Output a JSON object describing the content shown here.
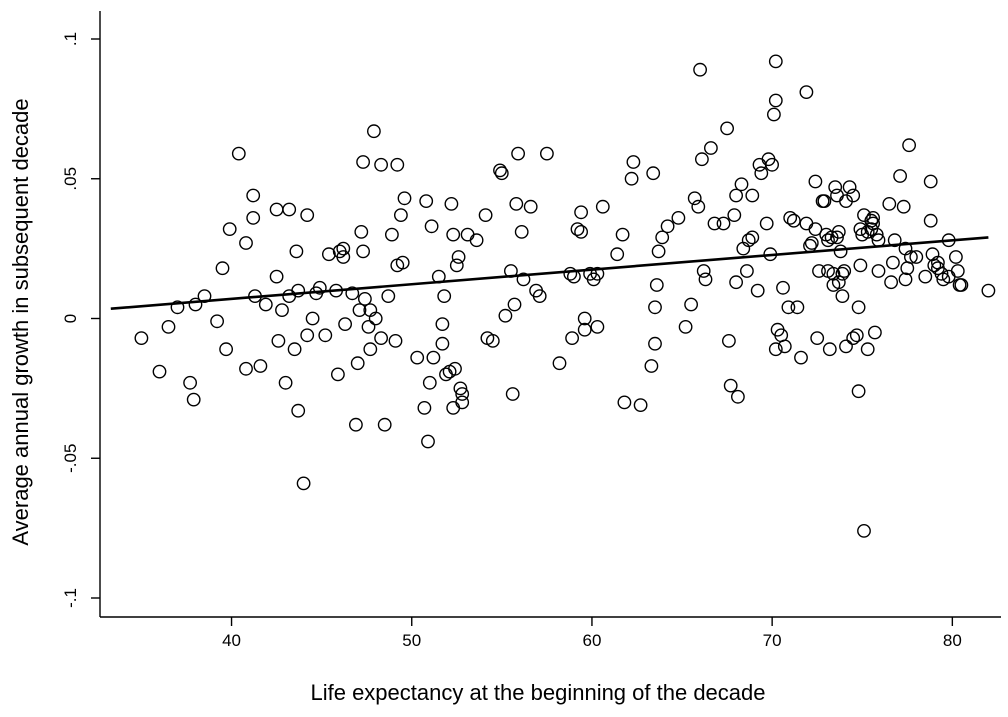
{
  "chart_data": {
    "type": "scatter",
    "xlabel": "Life expectancy at the beginning of the decade",
    "ylabel": "Average annual growth in subsequent decade",
    "xlim": [
      32.7,
      82.7
    ],
    "ylim": [
      -0.1,
      0.1
    ],
    "x_ticks": [
      40,
      50,
      60,
      70,
      80
    ],
    "x_tick_labels": [
      "40",
      "50",
      "60",
      "70",
      "80"
    ],
    "y_ticks": [
      -0.1,
      -0.05,
      0,
      0.05,
      0.1
    ],
    "y_tick_labels": [
      "-.1",
      "-.05",
      "0",
      ".05",
      ".1"
    ],
    "grid": false,
    "legend": "none",
    "fit_line": {
      "x": [
        33.3,
        82.0
      ],
      "y": [
        0.0035,
        0.029
      ]
    },
    "points": [
      {
        "x": 35.0,
        "y": -0.007
      },
      {
        "x": 36.0,
        "y": -0.019
      },
      {
        "x": 36.5,
        "y": -0.003
      },
      {
        "x": 37.0,
        "y": 0.004
      },
      {
        "x": 37.7,
        "y": -0.023
      },
      {
        "x": 37.9,
        "y": -0.029
      },
      {
        "x": 38.0,
        "y": 0.005
      },
      {
        "x": 38.5,
        "y": 0.008
      },
      {
        "x": 39.2,
        "y": -0.001
      },
      {
        "x": 39.5,
        "y": 0.018
      },
      {
        "x": 39.7,
        "y": -0.011
      },
      {
        "x": 39.9,
        "y": 0.032
      },
      {
        "x": 40.4,
        "y": 0.059
      },
      {
        "x": 40.8,
        "y": 0.027
      },
      {
        "x": 40.8,
        "y": -0.018
      },
      {
        "x": 41.2,
        "y": 0.044
      },
      {
        "x": 41.2,
        "y": 0.036
      },
      {
        "x": 41.3,
        "y": 0.008
      },
      {
        "x": 41.6,
        "y": -0.017
      },
      {
        "x": 41.9,
        "y": 0.005
      },
      {
        "x": 42.5,
        "y": 0.039
      },
      {
        "x": 42.5,
        "y": 0.015
      },
      {
        "x": 42.6,
        "y": -0.008
      },
      {
        "x": 42.8,
        "y": 0.003
      },
      {
        "x": 43.0,
        "y": -0.023
      },
      {
        "x": 43.2,
        "y": 0.039
      },
      {
        "x": 43.2,
        "y": 0.008
      },
      {
        "x": 43.5,
        "y": -0.011
      },
      {
        "x": 43.6,
        "y": 0.024
      },
      {
        "x": 43.7,
        "y": -0.033
      },
      {
        "x": 43.7,
        "y": 0.01
      },
      {
        "x": 44.0,
        "y": -0.059
      },
      {
        "x": 44.2,
        "y": 0.037
      },
      {
        "x": 44.2,
        "y": -0.006
      },
      {
        "x": 44.5,
        "y": 0.0
      },
      {
        "x": 44.7,
        "y": 0.009
      },
      {
        "x": 44.9,
        "y": 0.011
      },
      {
        "x": 45.2,
        "y": -0.006
      },
      {
        "x": 45.4,
        "y": 0.023
      },
      {
        "x": 45.8,
        "y": 0.01
      },
      {
        "x": 45.9,
        "y": -0.02
      },
      {
        "x": 46.0,
        "y": 0.024
      },
      {
        "x": 46.2,
        "y": 0.025
      },
      {
        "x": 46.2,
        "y": 0.022
      },
      {
        "x": 46.3,
        "y": -0.002
      },
      {
        "x": 46.7,
        "y": 0.009
      },
      {
        "x": 46.9,
        "y": -0.038
      },
      {
        "x": 47.0,
        "y": -0.016
      },
      {
        "x": 47.1,
        "y": 0.003
      },
      {
        "x": 47.2,
        "y": 0.031
      },
      {
        "x": 47.3,
        "y": 0.056
      },
      {
        "x": 47.3,
        "y": 0.024
      },
      {
        "x": 47.4,
        "y": 0.007
      },
      {
        "x": 47.6,
        "y": -0.003
      },
      {
        "x": 47.7,
        "y": 0.003
      },
      {
        "x": 47.7,
        "y": -0.011
      },
      {
        "x": 47.9,
        "y": 0.067
      },
      {
        "x": 48.0,
        "y": 0.0
      },
      {
        "x": 48.3,
        "y": 0.055
      },
      {
        "x": 48.3,
        "y": -0.007
      },
      {
        "x": 48.5,
        "y": -0.038
      },
      {
        "x": 48.7,
        "y": 0.008
      },
      {
        "x": 48.9,
        "y": 0.03
      },
      {
        "x": 49.1,
        "y": -0.008
      },
      {
        "x": 49.2,
        "y": 0.055
      },
      {
        "x": 49.2,
        "y": 0.019
      },
      {
        "x": 49.4,
        "y": 0.037
      },
      {
        "x": 49.5,
        "y": 0.02
      },
      {
        "x": 49.6,
        "y": 0.043
      },
      {
        "x": 50.3,
        "y": -0.014
      },
      {
        "x": 50.7,
        "y": -0.032
      },
      {
        "x": 50.8,
        "y": 0.042
      },
      {
        "x": 50.9,
        "y": -0.044
      },
      {
        "x": 51.0,
        "y": -0.023
      },
      {
        "x": 51.1,
        "y": 0.033
      },
      {
        "x": 51.2,
        "y": -0.014
      },
      {
        "x": 51.5,
        "y": 0.015
      },
      {
        "x": 51.7,
        "y": -0.009
      },
      {
        "x": 51.7,
        "y": -0.002
      },
      {
        "x": 51.8,
        "y": 0.008
      },
      {
        "x": 51.9,
        "y": -0.02
      },
      {
        "x": 52.1,
        "y": -0.019
      },
      {
        "x": 52.2,
        "y": 0.041
      },
      {
        "x": 52.3,
        "y": -0.032
      },
      {
        "x": 52.3,
        "y": 0.03
      },
      {
        "x": 52.4,
        "y": -0.018
      },
      {
        "x": 52.5,
        "y": 0.019
      },
      {
        "x": 52.6,
        "y": 0.022
      },
      {
        "x": 52.7,
        "y": -0.025
      },
      {
        "x": 52.8,
        "y": -0.03
      },
      {
        "x": 52.8,
        "y": -0.027
      },
      {
        "x": 53.1,
        "y": 0.03
      },
      {
        "x": 53.6,
        "y": 0.028
      },
      {
        "x": 54.1,
        "y": 0.037
      },
      {
        "x": 54.2,
        "y": -0.007
      },
      {
        "x": 54.5,
        "y": -0.008
      },
      {
        "x": 54.9,
        "y": 0.053
      },
      {
        "x": 55.0,
        "y": 0.052
      },
      {
        "x": 55.2,
        "y": 0.001
      },
      {
        "x": 55.5,
        "y": 0.017
      },
      {
        "x": 55.6,
        "y": -0.027
      },
      {
        "x": 55.7,
        "y": 0.005
      },
      {
        "x": 55.8,
        "y": 0.041
      },
      {
        "x": 55.9,
        "y": 0.059
      },
      {
        "x": 56.1,
        "y": 0.031
      },
      {
        "x": 56.2,
        "y": 0.014
      },
      {
        "x": 56.6,
        "y": 0.04
      },
      {
        "x": 56.9,
        "y": 0.01
      },
      {
        "x": 57.1,
        "y": 0.008
      },
      {
        "x": 57.5,
        "y": 0.059
      },
      {
        "x": 58.2,
        "y": -0.016
      },
      {
        "x": 58.8,
        "y": 0.016
      },
      {
        "x": 58.9,
        "y": -0.007
      },
      {
        "x": 59.0,
        "y": 0.015
      },
      {
        "x": 59.2,
        "y": 0.032
      },
      {
        "x": 59.4,
        "y": 0.038
      },
      {
        "x": 59.4,
        "y": 0.031
      },
      {
        "x": 59.6,
        "y": 0.0
      },
      {
        "x": 59.6,
        "y": -0.004
      },
      {
        "x": 59.9,
        "y": 0.016
      },
      {
        "x": 60.1,
        "y": 0.014
      },
      {
        "x": 60.3,
        "y": 0.016
      },
      {
        "x": 60.3,
        "y": -0.003
      },
      {
        "x": 60.6,
        "y": 0.04
      },
      {
        "x": 61.4,
        "y": 0.023
      },
      {
        "x": 61.7,
        "y": 0.03
      },
      {
        "x": 61.8,
        "y": -0.03
      },
      {
        "x": 62.2,
        "y": 0.05
      },
      {
        "x": 62.3,
        "y": 0.056
      },
      {
        "x": 62.7,
        "y": -0.031
      },
      {
        "x": 63.3,
        "y": -0.017
      },
      {
        "x": 63.4,
        "y": 0.052
      },
      {
        "x": 63.5,
        "y": 0.004
      },
      {
        "x": 63.5,
        "y": -0.009
      },
      {
        "x": 63.6,
        "y": 0.012
      },
      {
        "x": 63.7,
        "y": 0.024
      },
      {
        "x": 63.9,
        "y": 0.029
      },
      {
        "x": 64.2,
        "y": 0.033
      },
      {
        "x": 64.8,
        "y": 0.036
      },
      {
        "x": 65.2,
        "y": -0.003
      },
      {
        "x": 65.5,
        "y": 0.005
      },
      {
        "x": 65.7,
        "y": 0.043
      },
      {
        "x": 65.9,
        "y": 0.04
      },
      {
        "x": 66.0,
        "y": 0.089
      },
      {
        "x": 66.1,
        "y": 0.057
      },
      {
        "x": 66.2,
        "y": 0.017
      },
      {
        "x": 66.3,
        "y": 0.014
      },
      {
        "x": 66.6,
        "y": 0.061
      },
      {
        "x": 66.8,
        "y": 0.034
      },
      {
        "x": 67.3,
        "y": 0.034
      },
      {
        "x": 67.5,
        "y": 0.068
      },
      {
        "x": 67.6,
        "y": -0.008
      },
      {
        "x": 67.7,
        "y": -0.024
      },
      {
        "x": 67.9,
        "y": 0.037
      },
      {
        "x": 68.0,
        "y": 0.044
      },
      {
        "x": 68.0,
        "y": 0.013
      },
      {
        "x": 68.1,
        "y": -0.028
      },
      {
        "x": 68.3,
        "y": 0.048
      },
      {
        "x": 68.4,
        "y": 0.025
      },
      {
        "x": 68.6,
        "y": 0.017
      },
      {
        "x": 68.7,
        "y": 0.028
      },
      {
        "x": 68.9,
        "y": 0.044
      },
      {
        "x": 68.9,
        "y": 0.029
      },
      {
        "x": 69.2,
        "y": 0.01
      },
      {
        "x": 69.3,
        "y": 0.055
      },
      {
        "x": 69.4,
        "y": 0.052
      },
      {
        "x": 69.7,
        "y": 0.034
      },
      {
        "x": 69.8,
        "y": 0.057
      },
      {
        "x": 69.9,
        "y": 0.023
      },
      {
        "x": 70.0,
        "y": 0.055
      },
      {
        "x": 70.1,
        "y": 0.073
      },
      {
        "x": 70.2,
        "y": -0.011
      },
      {
        "x": 70.2,
        "y": 0.092
      },
      {
        "x": 70.2,
        "y": 0.078
      },
      {
        "x": 70.3,
        "y": -0.004
      },
      {
        "x": 70.5,
        "y": -0.006
      },
      {
        "x": 70.6,
        "y": 0.011
      },
      {
        "x": 70.7,
        "y": -0.01
      },
      {
        "x": 70.9,
        "y": 0.004
      },
      {
        "x": 71.0,
        "y": 0.036
      },
      {
        "x": 71.2,
        "y": 0.035
      },
      {
        "x": 71.4,
        "y": 0.004
      },
      {
        "x": 71.6,
        "y": -0.014
      },
      {
        "x": 71.9,
        "y": 0.081
      },
      {
        "x": 71.9,
        "y": 0.034
      },
      {
        "x": 72.1,
        "y": 0.026
      },
      {
        "x": 72.2,
        "y": 0.027
      },
      {
        "x": 72.4,
        "y": 0.032
      },
      {
        "x": 72.4,
        "y": 0.049
      },
      {
        "x": 72.5,
        "y": -0.007
      },
      {
        "x": 72.6,
        "y": 0.017
      },
      {
        "x": 72.8,
        "y": 0.042
      },
      {
        "x": 72.9,
        "y": 0.042
      },
      {
        "x": 73.0,
        "y": 0.03
      },
      {
        "x": 73.1,
        "y": 0.028
      },
      {
        "x": 73.1,
        "y": 0.017
      },
      {
        "x": 73.2,
        "y": -0.011
      },
      {
        "x": 73.3,
        "y": 0.029
      },
      {
        "x": 73.4,
        "y": 0.016
      },
      {
        "x": 73.4,
        "y": 0.012
      },
      {
        "x": 73.5,
        "y": 0.047
      },
      {
        "x": 73.6,
        "y": 0.029
      },
      {
        "x": 73.6,
        "y": 0.044
      },
      {
        "x": 73.7,
        "y": 0.013
      },
      {
        "x": 73.7,
        "y": 0.031
      },
      {
        "x": 73.8,
        "y": 0.024
      },
      {
        "x": 73.9,
        "y": 0.016
      },
      {
        "x": 73.9,
        "y": 0.008
      },
      {
        "x": 74.0,
        "y": 0.017
      },
      {
        "x": 74.1,
        "y": 0.042
      },
      {
        "x": 74.1,
        "y": -0.01
      },
      {
        "x": 74.3,
        "y": 0.047
      },
      {
        "x": 74.5,
        "y": 0.044
      },
      {
        "x": 74.5,
        "y": -0.007
      },
      {
        "x": 74.7,
        "y": -0.006
      },
      {
        "x": 74.8,
        "y": 0.004
      },
      {
        "x": 74.8,
        "y": -0.026
      },
      {
        "x": 74.9,
        "y": 0.032
      },
      {
        "x": 74.9,
        "y": 0.019
      },
      {
        "x": 75.0,
        "y": 0.03
      },
      {
        "x": 75.1,
        "y": 0.037
      },
      {
        "x": 75.1,
        "y": -0.076
      },
      {
        "x": 75.3,
        "y": 0.031
      },
      {
        "x": 75.3,
        "y": -0.011
      },
      {
        "x": 75.5,
        "y": 0.035
      },
      {
        "x": 75.5,
        "y": 0.032
      },
      {
        "x": 75.6,
        "y": 0.036
      },
      {
        "x": 75.6,
        "y": 0.034
      },
      {
        "x": 75.7,
        "y": -0.005
      },
      {
        "x": 75.8,
        "y": 0.03
      },
      {
        "x": 75.9,
        "y": 0.017
      },
      {
        "x": 75.9,
        "y": 0.028
      },
      {
        "x": 76.5,
        "y": 0.041
      },
      {
        "x": 76.6,
        "y": 0.013
      },
      {
        "x": 76.7,
        "y": 0.02
      },
      {
        "x": 76.8,
        "y": 0.028
      },
      {
        "x": 77.1,
        "y": 0.051
      },
      {
        "x": 77.3,
        "y": 0.04
      },
      {
        "x": 77.4,
        "y": 0.014
      },
      {
        "x": 77.4,
        "y": 0.025
      },
      {
        "x": 77.5,
        "y": 0.018
      },
      {
        "x": 77.6,
        "y": 0.062
      },
      {
        "x": 77.7,
        "y": 0.022
      },
      {
        "x": 78.0,
        "y": 0.022
      },
      {
        "x": 78.5,
        "y": 0.015
      },
      {
        "x": 78.8,
        "y": 0.049
      },
      {
        "x": 78.8,
        "y": 0.035
      },
      {
        "x": 78.9,
        "y": 0.023
      },
      {
        "x": 79.0,
        "y": 0.019
      },
      {
        "x": 79.2,
        "y": 0.02
      },
      {
        "x": 79.2,
        "y": 0.018
      },
      {
        "x": 79.4,
        "y": 0.016
      },
      {
        "x": 79.5,
        "y": 0.014
      },
      {
        "x": 79.8,
        "y": 0.015
      },
      {
        "x": 79.8,
        "y": 0.028
      },
      {
        "x": 80.2,
        "y": 0.022
      },
      {
        "x": 80.3,
        "y": 0.017
      },
      {
        "x": 80.4,
        "y": 0.012
      },
      {
        "x": 80.5,
        "y": 0.012
      },
      {
        "x": 82.0,
        "y": 0.01
      }
    ]
  }
}
